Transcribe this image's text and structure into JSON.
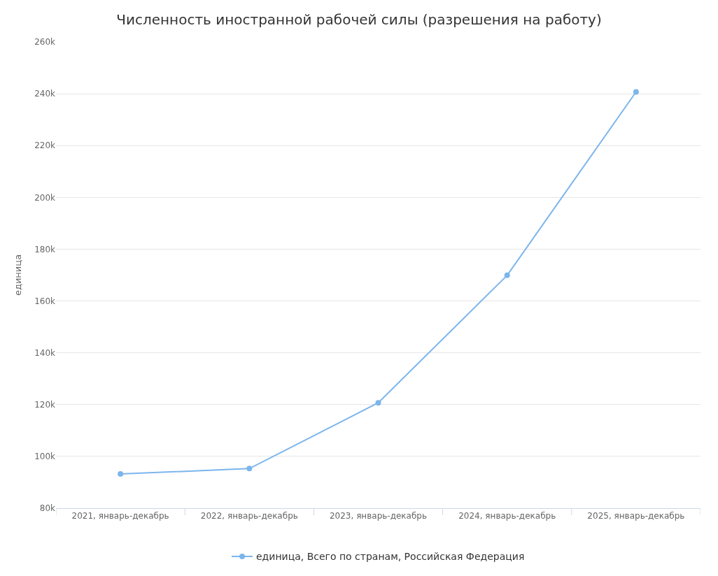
{
  "chart_data": {
    "type": "line",
    "title": "Численность иностранной рабочей силы (разрешения на работу)",
    "ylabel": "единица",
    "categories": [
      "2021, январь-декабрь",
      "2022, январь-декабрь",
      "2023, январь-декабрь",
      "2024, январь-декабрь",
      "2025, январь-декабрь"
    ],
    "series": [
      {
        "name": "единица, Всего по странам, Российская Федерация",
        "color": "#7cb5ec",
        "values": [
          93200,
          95300,
          120700,
          169900,
          240700
        ]
      }
    ],
    "ylim": [
      80000,
      260000
    ],
    "yticks": [
      {
        "value": 80000,
        "label": "80k"
      },
      {
        "value": 100000,
        "label": "100k"
      },
      {
        "value": 120000,
        "label": "120k"
      },
      {
        "value": 140000,
        "label": "140k"
      },
      {
        "value": 160000,
        "label": "160k"
      },
      {
        "value": 180000,
        "label": "180k"
      },
      {
        "value": 200000,
        "label": "200k"
      },
      {
        "value": 220000,
        "label": "220k"
      },
      {
        "value": 240000,
        "label": "240k"
      },
      {
        "value": 260000,
        "label": "260k"
      }
    ],
    "grid": "y",
    "legend": "bottom",
    "marker": "circle",
    "line_style": "solid"
  }
}
